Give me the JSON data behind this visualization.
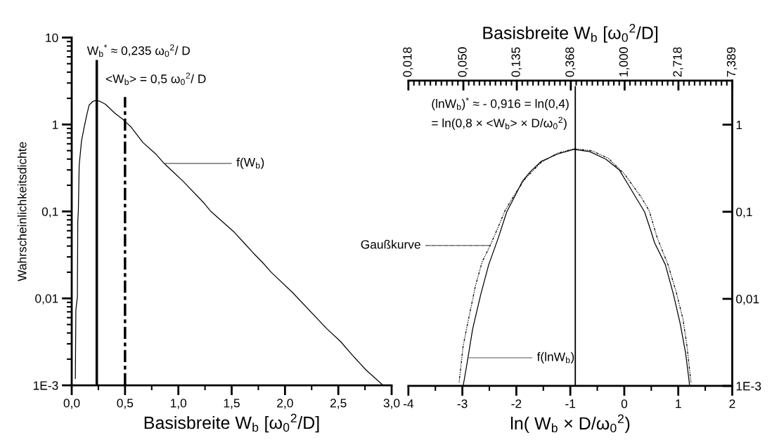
{
  "chart_data": [
    {
      "type": "line",
      "xlabel": "Basisbreite W$_{b}$ [ω$_{0}$$^{2}$/D]",
      "ylabel": "Wahrscheinlichkeitsdichte",
      "log": "y",
      "xlim": [
        0,
        3
      ],
      "xticks": [
        {
          "value": 0,
          "label": "0,0"
        },
        {
          "value": 0.5,
          "label": "0,5"
        },
        {
          "value": 1,
          "label": "1,0"
        },
        {
          "value": 1.5,
          "label": "1,5"
        },
        {
          "value": 2,
          "label": "2,0"
        },
        {
          "value": 2.5,
          "label": "2,5"
        },
        {
          "value": 3,
          "label": "3,0"
        }
      ],
      "ylim": [
        0.001,
        10
      ],
      "yticks": [
        {
          "value": 0.001,
          "label": "1E-3"
        },
        {
          "value": 0.01,
          "label": "0,01"
        },
        {
          "value": 0.1,
          "label": "0,1"
        },
        1,
        10
      ],
      "series": [
        {
          "color": "#000000",
          "x": [
            0.034,
            0.039,
            0.053,
            0.057,
            0.062,
            0.07,
            0.092,
            0.119,
            0.14,
            0.163,
            0.2,
            0.229,
            0.26,
            0.316,
            0.404,
            0.481,
            0.558,
            0.668,
            0.787,
            0.866,
            1.04,
            1.24,
            1.305,
            1.516,
            1.62,
            1.705,
            1.788,
            1.87,
            2.07,
            2.39,
            2.52,
            2.635,
            2.76,
            2.92
          ],
          "values": [
            0.0012,
            0.0074,
            0.0103,
            0.078,
            0.1,
            0.34,
            0.65,
            0.96,
            1.27,
            1.67,
            1.85,
            1.89,
            1.86,
            1.71,
            1.35,
            1.14,
            0.93,
            0.62,
            0.46,
            0.357,
            0.225,
            0.125,
            0.1,
            0.059,
            0.043,
            0.033,
            0.026,
            0.02,
            0.0117,
            0.0045,
            0.0032,
            0.0022,
            0.0015,
            0.001
          ]
        }
      ],
      "ref_lines": [
        {
          "axis": "x",
          "value": 0.235,
          "label": "W$_{b}$$^{*}$ ≈ 0,235 ω$_{0}$$^{2}$/ D",
          "color": "#000000",
          "line_style": "solid"
        },
        {
          "axis": "x",
          "value": 0.5,
          "label": "<W$_{b}$> = 0,5 ω$_{0}$$^{2}$/ D",
          "color": "#000000",
          "line_style": "dashdot"
        }
      ],
      "annotations": [
        {
          "text": "f(W$_{b}$)",
          "x": 0.866,
          "y": 0.357
        }
      ]
    },
    {
      "type": "line",
      "xlabel": "Basisbreite W$_{b}$ [ω$_{0}$$^{2}$/D]",
      "x2label": "ln( W$_{b}$ × D/ω$_{0}$$^{2}$)",
      "log": "xy",
      "xlim": [
        0.018,
        7.389
      ],
      "xticks": [
        {
          "value": 0.018,
          "label": "0,018"
        },
        {
          "value": 0.05,
          "label": "0,050"
        },
        {
          "value": 0.135,
          "label": "0,135"
        },
        {
          "value": 0.368,
          "label": "0,368"
        },
        {
          "value": 1,
          "label": "1,000"
        },
        {
          "value": 2.718,
          "label": "2,718"
        },
        {
          "value": 7.389,
          "label": "7,389"
        }
      ],
      "x2lim": [
        -4,
        2
      ],
      "x2ticks": [
        -4,
        -3,
        -2,
        -1,
        0,
        1,
        2
      ],
      "ylim": [
        0.001,
        3.2
      ],
      "yticks": [
        {
          "value": 0.001,
          "label": "1E-3"
        },
        {
          "value": 0.01,
          "label": "0,01"
        },
        {
          "value": 0.1,
          "label": "0,1"
        },
        1
      ],
      "series": [
        {
          "color": "#000000",
          "line_style": "solid",
          "x": [
            0.0498,
            0.0538,
            0.0594,
            0.0691,
            0.0801,
            0.0956,
            0.112,
            0.129,
            0.15,
            0.174,
            0.213,
            0.288,
            0.389,
            0.525,
            0.708,
            0.91,
            1.058,
            1.229,
            1.448,
            1.619,
            1.746,
            2.132,
            2.477,
            2.809,
            3.105,
            3.313,
            3.347
          ],
          "values": [
            0.001,
            0.0019,
            0.0045,
            0.0113,
            0.0247,
            0.05,
            0.1,
            0.147,
            0.225,
            0.29,
            0.38,
            0.46,
            0.52,
            0.49,
            0.4,
            0.3,
            0.21,
            0.147,
            0.1,
            0.062,
            0.044,
            0.0247,
            0.0113,
            0.0052,
            0.0024,
            0.00115,
            0.001
          ]
        },
        {
          "color": "#000000",
          "line_style": "dotted",
          "x": [
            0.0462,
            0.0498,
            0.0551,
            0.0625,
            0.0708,
            0.0823,
            0.0956,
            0.1084,
            0.1287,
            0.1577,
            0.2122,
            0.2865,
            0.3946,
            0.5488,
            0.7408,
            1.0,
            1.162,
            1.35,
            1.578,
            1.835,
            2.241,
            2.604,
            2.954,
            3.184,
            3.432
          ],
          "values": [
            0.0011,
            0.0029,
            0.0059,
            0.014,
            0.0265,
            0.041,
            0.067,
            0.103,
            0.155,
            0.24,
            0.37,
            0.47,
            0.53,
            0.5,
            0.41,
            0.27,
            0.2,
            0.15,
            0.103,
            0.05,
            0.0247,
            0.0121,
            0.0059,
            0.0029,
            0.0011
          ]
        }
      ],
      "ref_lines": [
        {
          "axis": "x",
          "value": 0.4,
          "label": "(lnW$_{b}$)$^{*}$ ≈ - 0,916 = ln(0,4)\n= ln(0,8 × <W$_{b}$> × D/ω$_{0}$$^{2}$)",
          "color": "#000000",
          "line_style": "solid"
        }
      ],
      "annotations": [
        {
          "text": "Gaußkurve",
          "x": 0.0823,
          "y": 0.041
        },
        {
          "text": "f(lnW$_{b}$)",
          "x": 0.055,
          "y": 0.0021
        }
      ]
    }
  ]
}
